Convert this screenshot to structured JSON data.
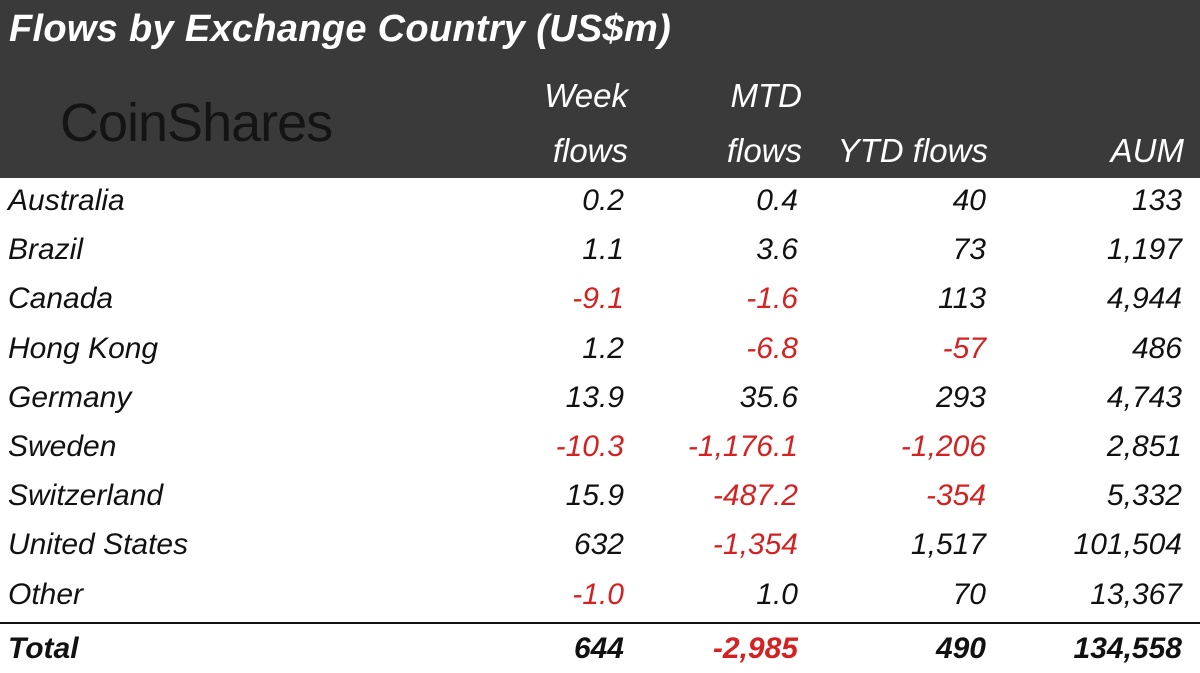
{
  "header": {
    "title": "Flows by Exchange Country (US$m)",
    "brand": "CoinShares",
    "columns": {
      "week_1": "Week",
      "week_2": "flows",
      "mtd_1": "MTD",
      "mtd_2": "flows",
      "ytd": "YTD flows",
      "aum": "AUM"
    }
  },
  "chart_data": {
    "type": "table",
    "title": "Flows by Exchange Country (US$m)",
    "columns": [
      "Week flows",
      "MTD flows",
      "YTD flows",
      "AUM"
    ],
    "rows": [
      {
        "country": "Australia",
        "week": "0.2",
        "mtd": "0.4",
        "ytd": "40",
        "aum": "133",
        "neg": [
          false,
          false,
          false,
          false
        ]
      },
      {
        "country": "Brazil",
        "week": "1.1",
        "mtd": "3.6",
        "ytd": "73",
        "aum": "1,197",
        "neg": [
          false,
          false,
          false,
          false
        ]
      },
      {
        "country": "Canada",
        "week": "-9.1",
        "mtd": "-1.6",
        "ytd": "113",
        "aum": "4,944",
        "neg": [
          true,
          true,
          false,
          false
        ]
      },
      {
        "country": "Hong Kong",
        "week": "1.2",
        "mtd": "-6.8",
        "ytd": "-57",
        "aum": "486",
        "neg": [
          false,
          true,
          true,
          false
        ]
      },
      {
        "country": "Germany",
        "week": "13.9",
        "mtd": "35.6",
        "ytd": "293",
        "aum": "4,743",
        "neg": [
          false,
          false,
          false,
          false
        ]
      },
      {
        "country": "Sweden",
        "week": "-10.3",
        "mtd": "-1,176.1",
        "ytd": "-1,206",
        "aum": "2,851",
        "neg": [
          true,
          true,
          true,
          false
        ]
      },
      {
        "country": "Switzerland",
        "week": "15.9",
        "mtd": "-487.2",
        "ytd": "-354",
        "aum": "5,332",
        "neg": [
          false,
          true,
          true,
          false
        ]
      },
      {
        "country": "United States",
        "week": "632",
        "mtd": "-1,354",
        "ytd": "1,517",
        "aum": "101,504",
        "neg": [
          false,
          true,
          false,
          false
        ]
      },
      {
        "country": "Other",
        "week": "-1.0",
        "mtd": "1.0",
        "ytd": "70",
        "aum": "13,367",
        "neg": [
          true,
          false,
          false,
          false
        ]
      }
    ],
    "total": {
      "country": "Total",
      "week": "644",
      "mtd": "-2,985",
      "ytd": "490",
      "aum": "134,558",
      "neg": [
        false,
        true,
        false,
        false
      ]
    },
    "colors": {
      "negative": "#d42121",
      "header_bg": "#3a3a3a"
    }
  }
}
